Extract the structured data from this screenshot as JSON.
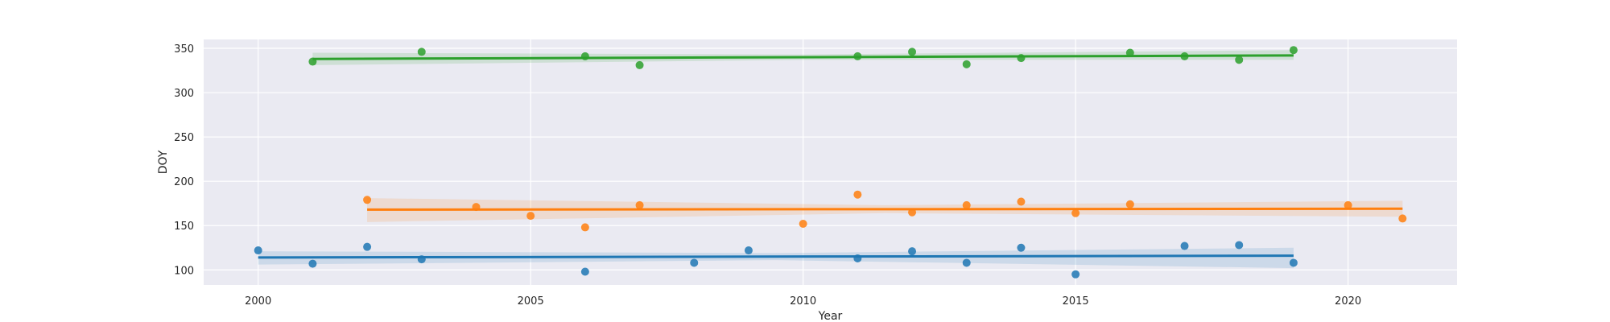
{
  "chart_data": {
    "type": "scatter",
    "title": "",
    "xlabel": "Year",
    "ylabel": "DOY",
    "xlim": [
      1999,
      2022
    ],
    "ylim": [
      83,
      360
    ],
    "xticks": [
      2000,
      2005,
      2010,
      2015,
      2020
    ],
    "yticks": [
      100,
      150,
      200,
      250,
      300,
      350
    ],
    "grid": true,
    "legend": "none",
    "series": [
      {
        "color": "#1f77b4",
        "points": [
          {
            "x": 2000,
            "y": 122
          },
          {
            "x": 2001,
            "y": 107
          },
          {
            "x": 2002,
            "y": 126
          },
          {
            "x": 2003,
            "y": 112
          },
          {
            "x": 2006,
            "y": 98
          },
          {
            "x": 2008,
            "y": 108
          },
          {
            "x": 2009,
            "y": 122
          },
          {
            "x": 2011,
            "y": 113
          },
          {
            "x": 2012,
            "y": 121
          },
          {
            "x": 2013,
            "y": 108
          },
          {
            "x": 2014,
            "y": 125
          },
          {
            "x": 2015,
            "y": 95
          },
          {
            "x": 2017,
            "y": 127
          },
          {
            "x": 2018,
            "y": 128
          },
          {
            "x": 2019,
            "y": 108
          }
        ],
        "fit": {
          "x_start": 2000,
          "y_start": 114,
          "x_end": 2019,
          "y_end": 116
        },
        "ci_lower": [
          106,
          111,
          102
        ],
        "ci_upper": [
          121,
          119,
          125
        ]
      },
      {
        "color": "#ff7f0e",
        "points": [
          {
            "x": 2002,
            "y": 179
          },
          {
            "x": 2004,
            "y": 171
          },
          {
            "x": 2005,
            "y": 161
          },
          {
            "x": 2006,
            "y": 148
          },
          {
            "x": 2007,
            "y": 173
          },
          {
            "x": 2010,
            "y": 152
          },
          {
            "x": 2011,
            "y": 185
          },
          {
            "x": 2012,
            "y": 165
          },
          {
            "x": 2013,
            "y": 173
          },
          {
            "x": 2014,
            "y": 177
          },
          {
            "x": 2015,
            "y": 164
          },
          {
            "x": 2016,
            "y": 174
          },
          {
            "x": 2020,
            "y": 173
          },
          {
            "x": 2021,
            "y": 158
          }
        ],
        "fit": {
          "x_start": 2002,
          "y_start": 168,
          "x_end": 2021,
          "y_end": 169
        },
        "ci_lower": [
          154,
          164,
          160
        ],
        "ci_upper": [
          181,
          173,
          178
        ]
      },
      {
        "color": "#2ca02c",
        "points": [
          {
            "x": 2001,
            "y": 335
          },
          {
            "x": 2003,
            "y": 346
          },
          {
            "x": 2006,
            "y": 341
          },
          {
            "x": 2007,
            "y": 331
          },
          {
            "x": 2011,
            "y": 341
          },
          {
            "x": 2012,
            "y": 346
          },
          {
            "x": 2013,
            "y": 332
          },
          {
            "x": 2014,
            "y": 339
          },
          {
            "x": 2016,
            "y": 345
          },
          {
            "x": 2017,
            "y": 341
          },
          {
            "x": 2018,
            "y": 337
          },
          {
            "x": 2019,
            "y": 348
          }
        ],
        "fit": {
          "x_start": 2001,
          "y_start": 338,
          "x_end": 2019,
          "y_end": 342
        },
        "ci_lower": [
          331,
          337,
          337
        ],
        "ci_upper": [
          345,
          343,
          348
        ]
      }
    ]
  }
}
